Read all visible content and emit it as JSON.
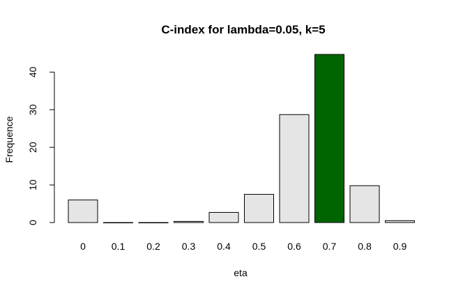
{
  "chart_data": {
    "type": "bar",
    "title": "C-index for lambda=0.05, k=5",
    "xlabel": "eta",
    "ylabel": "Frequence",
    "categories": [
      "0",
      "0.1",
      "0.2",
      "0.3",
      "0.4",
      "0.5",
      "0.6",
      "0.7",
      "0.8",
      "0.9"
    ],
    "values": [
      6,
      0,
      0,
      0.3,
      2.7,
      7.5,
      28.7,
      44.7,
      9.8,
      0.5
    ],
    "ylim": [
      0,
      44.7
    ],
    "yticks": [
      "0",
      "10",
      "20",
      "30",
      "40"
    ],
    "grid": false,
    "legend": "none",
    "highlight_index": 7,
    "colors": {
      "bar_default": "#e5e5e5",
      "bar_highlight": "#006400",
      "bar_stroke": "#000000",
      "axis": "#000000"
    }
  }
}
